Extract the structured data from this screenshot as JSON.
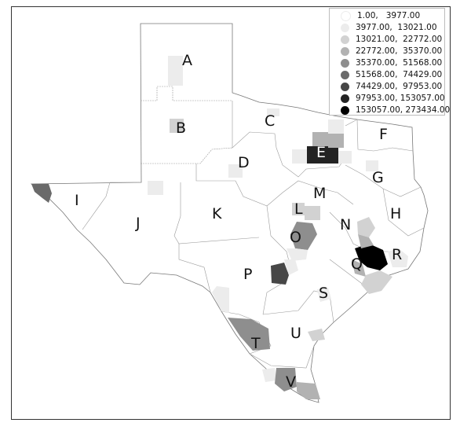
{
  "map": {
    "regions": [
      {
        "id": "A",
        "label": "A"
      },
      {
        "id": "B",
        "label": "B"
      },
      {
        "id": "C",
        "label": "C"
      },
      {
        "id": "D",
        "label": "D"
      },
      {
        "id": "E",
        "label": "E"
      },
      {
        "id": "F",
        "label": "F"
      },
      {
        "id": "G",
        "label": "G"
      },
      {
        "id": "H",
        "label": "H"
      },
      {
        "id": "I",
        "label": "I"
      },
      {
        "id": "J",
        "label": "J"
      },
      {
        "id": "K",
        "label": "K"
      },
      {
        "id": "L",
        "label": "L"
      },
      {
        "id": "M",
        "label": "M"
      },
      {
        "id": "N",
        "label": "N"
      },
      {
        "id": "O",
        "label": "O"
      },
      {
        "id": "P",
        "label": "P"
      },
      {
        "id": "Q",
        "label": "Q"
      },
      {
        "id": "R",
        "label": "R"
      },
      {
        "id": "S",
        "label": "S"
      },
      {
        "id": "T",
        "label": "T"
      },
      {
        "id": "U",
        "label": "U"
      },
      {
        "id": "V",
        "label": "V"
      }
    ]
  },
  "legend": {
    "items": [
      {
        "label": "1.00,   3977.00",
        "color": "#ffffff"
      },
      {
        "label": "3977.00,  13021.00",
        "color": "#ececec"
      },
      {
        "label": "13021.00,  22772.00",
        "color": "#d2d2d2"
      },
      {
        "label": "22772.00,  35370.00",
        "color": "#b2b2b2"
      },
      {
        "label": "35370.00,  51568.00",
        "color": "#8e8e8e"
      },
      {
        "label": "51568.00,  74429.00",
        "color": "#6a6a6a"
      },
      {
        "label": "74429.00,  97953.00",
        "color": "#474747"
      },
      {
        "label": "97953.00, 153057.00",
        "color": "#232323"
      },
      {
        "label": "153057.00, 273434.00",
        "color": "#000000"
      }
    ]
  }
}
